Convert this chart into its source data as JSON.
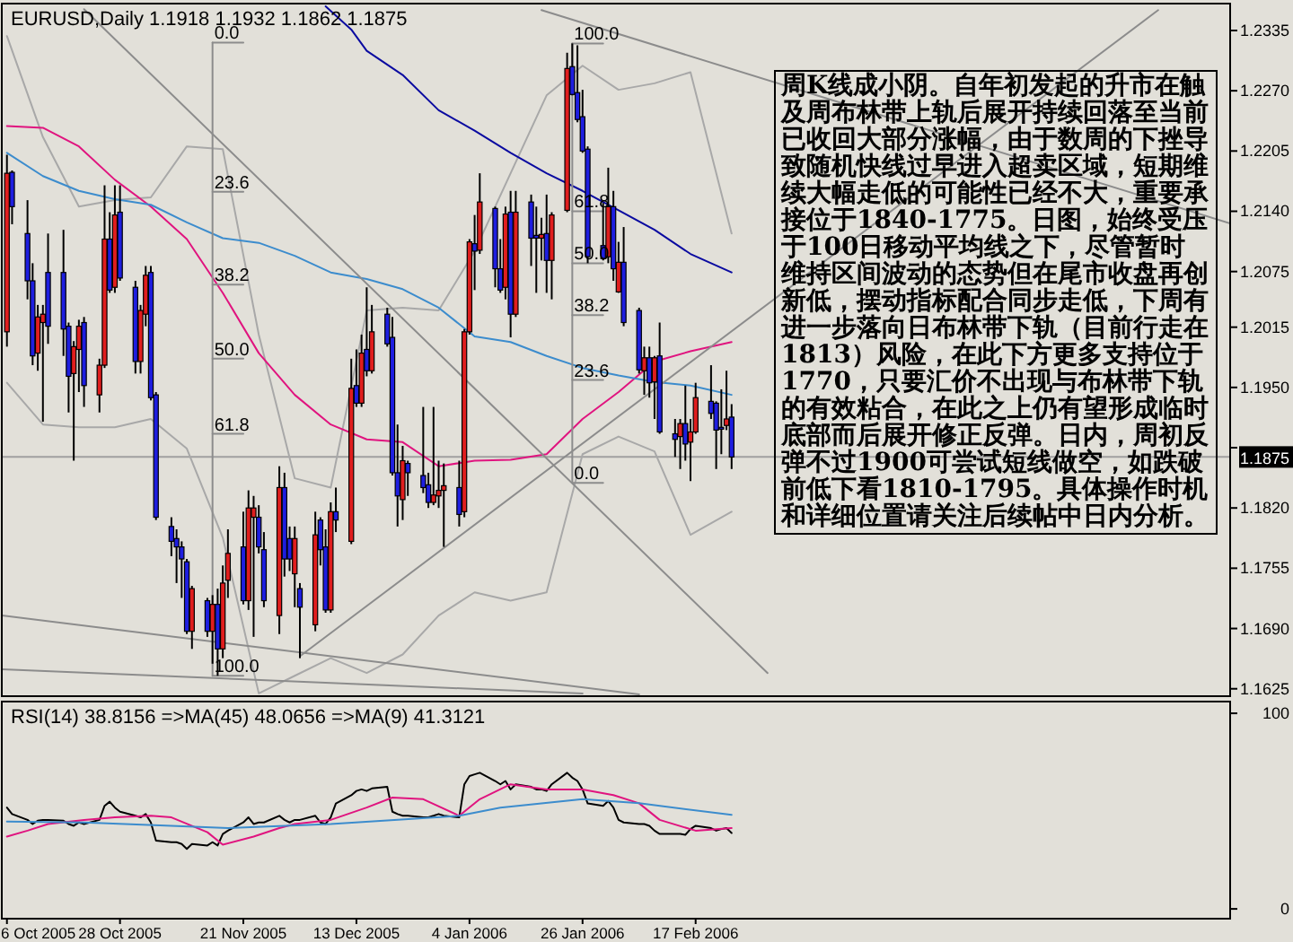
{
  "chart_data": [
    {
      "type": "candlestick",
      "title": "EURUSD,Daily 1.1918 1.1932 1.1862 1.1875",
      "x": [
        "2005-10-06",
        "2005-10-07",
        "2005-10-10",
        "2005-10-11",
        "2005-10-12",
        "2005-10-13",
        "2005-10-14",
        "2005-10-17",
        "2005-10-18",
        "2005-10-19",
        "2005-10-20",
        "2005-10-21",
        "2005-10-24",
        "2005-10-25",
        "2005-10-26",
        "2005-10-27",
        "2005-10-28",
        "2005-10-31",
        "2005-11-01",
        "2005-11-02",
        "2005-11-03",
        "2005-11-04",
        "2005-11-07",
        "2005-11-08",
        "2005-11-09",
        "2005-11-10",
        "2005-11-11",
        "2005-11-14",
        "2005-11-15",
        "2005-11-16",
        "2005-11-17",
        "2005-11-18",
        "2005-11-21",
        "2005-11-22",
        "2005-11-23",
        "2005-11-24",
        "2005-11-25",
        "2005-11-28",
        "2005-11-29",
        "2005-11-30",
        "2005-12-01",
        "2005-12-02",
        "2005-12-05",
        "2005-12-06",
        "2005-12-07",
        "2005-12-08",
        "2005-12-09",
        "2005-12-12",
        "2005-12-13",
        "2005-12-14",
        "2005-12-15",
        "2005-12-16",
        "2005-12-19",
        "2005-12-20",
        "2005-12-21",
        "2005-12-22",
        "2005-12-23",
        "2005-12-26",
        "2005-12-27",
        "2005-12-28",
        "2005-12-29",
        "2005-12-30",
        "2006-01-02",
        "2006-01-03",
        "2006-01-04",
        "2006-01-05",
        "2006-01-06",
        "2006-01-09",
        "2006-01-10",
        "2006-01-11",
        "2006-01-12",
        "2006-01-13",
        "2006-01-16",
        "2006-01-17",
        "2006-01-18",
        "2006-01-19",
        "2006-01-20",
        "2006-01-23",
        "2006-01-24",
        "2006-01-25",
        "2006-01-26",
        "2006-01-27",
        "2006-01-30",
        "2006-01-31",
        "2006-02-01",
        "2006-02-02",
        "2006-02-03",
        "2006-02-06",
        "2006-02-07",
        "2006-02-08",
        "2006-02-09",
        "2006-02-10",
        "2006-02-13",
        "2006-02-14",
        "2006-02-15",
        "2006-02-16",
        "2006-02-17",
        "2006-02-20",
        "2006-02-21",
        "2006-02-22",
        "2006-02-23",
        "2006-02-24"
      ],
      "ohlc": [
        [
          1.201,
          1.2201,
          1.1994,
          1.2181
        ],
        [
          1.2182,
          1.2184,
          1.2126,
          1.2145
        ],
        [
          1.2116,
          1.2152,
          1.2045,
          1.2065
        ],
        [
          1.2065,
          1.2084,
          1.1974,
          1.1984
        ],
        [
          1.1987,
          1.2039,
          1.1968,
          1.2026
        ],
        [
          1.202,
          1.2039,
          1.1913,
          1.2029
        ],
        [
          1.2074,
          1.2116,
          1.1997,
          1.2016
        ],
        [
          1.2074,
          1.212,
          1.1984,
          1.2013
        ],
        [
          1.2016,
          1.202,
          1.1923,
          1.1962
        ],
        [
          1.1965,
          1.2,
          1.1871,
          1.1994
        ],
        [
          1.1991,
          1.2023,
          1.1945,
          1.2016
        ],
        [
          1.202,
          1.2026,
          1.1929,
          1.1952
        ],
        [
          1.1942,
          1.1981,
          1.1923,
          1.1974
        ],
        [
          1.1974,
          1.2168,
          1.1971,
          1.211
        ],
        [
          1.211,
          1.2139,
          1.2052,
          1.2055
        ],
        [
          1.2058,
          1.2168,
          1.2052,
          1.2136
        ],
        [
          1.2139,
          1.2168,
          1.2065,
          1.2068
        ],
        [
          1.2058,
          1.2065,
          1.1965,
          1.1978
        ],
        [
          1.1978,
          1.2039,
          1.1965,
          1.2033
        ],
        [
          1.2029,
          1.2081,
          1.2016,
          1.2071
        ],
        [
          1.2074,
          1.2081,
          1.1936,
          1.1939
        ],
        [
          1.1942,
          1.1945,
          1.1807,
          1.181
        ],
        [
          1.18,
          1.181,
          1.1768,
          1.1784
        ],
        [
          1.1787,
          1.1797,
          1.1739,
          1.1778
        ],
        [
          1.1778,
          1.1784,
          1.1723,
          1.1765
        ],
        [
          1.1762,
          1.1765,
          1.1684,
          1.1687
        ],
        [
          1.1687,
          1.1736,
          1.1668,
          1.1733
        ],
        [
          1.172,
          1.1723,
          1.1681,
          1.1687
        ],
        [
          1.1687,
          1.1726,
          1.1652,
          1.1716
        ],
        [
          1.1716,
          1.1733,
          1.1639,
          1.1668
        ],
        [
          1.1668,
          1.1758,
          1.1658,
          1.1739
        ],
        [
          1.1742,
          1.1797,
          1.1723,
          1.1771
        ],
        [
          1.1778,
          1.1816,
          1.1716,
          1.172
        ],
        [
          1.172,
          1.1839,
          1.171,
          1.182
        ],
        [
          1.181,
          1.1833,
          1.1681,
          1.182
        ],
        [
          1.181,
          1.1823,
          1.1771,
          1.1778
        ],
        [
          1.1775,
          1.1794,
          1.1713,
          1.172
        ],
        [
          1.1704,
          1.1865,
          1.1684,
          1.1842
        ],
        [
          1.1842,
          1.1858,
          1.1746,
          1.1765
        ],
        [
          1.1787,
          1.18,
          1.1752,
          1.1765
        ],
        [
          1.1749,
          1.18,
          1.1713,
          1.1787
        ],
        [
          1.1733,
          1.1739,
          1.1658,
          1.1713
        ],
        [
          1.1694,
          1.1816,
          1.1687,
          1.1791
        ],
        [
          1.1807,
          1.181,
          1.1758,
          1.1775
        ],
        [
          1.1778,
          1.1797,
          1.1707,
          1.171
        ],
        [
          1.171,
          1.1826,
          1.1707,
          1.1816
        ],
        [
          1.1816,
          1.1842,
          1.1794,
          1.1807
        ],
        [
          1.1784,
          1.1981,
          1.1781,
          1.1949
        ],
        [
          1.1952,
          1.1991,
          1.1929,
          1.1933
        ],
        [
          1.1933,
          1.2007,
          1.1929,
          1.1987
        ],
        [
          1.1991,
          1.2058,
          1.1962,
          1.1968
        ],
        [
          1.1968,
          1.2039,
          1.1965,
          1.201
        ],
        [
          1.2029,
          1.2036,
          1.1994,
          1.1997
        ],
        [
          1.2004,
          1.2026,
          1.1855,
          1.1858
        ],
        [
          1.1858,
          1.191,
          1.18,
          1.1833
        ],
        [
          1.1829,
          1.1887,
          1.1807,
          1.1871
        ],
        [
          1.1868,
          1.1871,
          1.1833,
          1.1858
        ],
        [
          1.1855,
          1.1929,
          1.1836,
          1.1842
        ],
        [
          1.1845,
          1.1858,
          1.182,
          1.1826
        ],
        [
          1.1826,
          1.1929,
          1.1823,
          1.1834
        ],
        [
          1.1833,
          1.1871,
          1.182,
          1.1839
        ],
        [
          1.1839,
          1.1868,
          1.1778,
          1.1844
        ],
        [
          1.1842,
          1.1871,
          1.18,
          1.1813
        ],
        [
          1.1816,
          1.2013,
          1.181,
          1.201
        ],
        [
          1.201,
          1.211,
          1.2007,
          1.2107
        ],
        [
          1.2105,
          1.2136,
          1.2055,
          1.2097
        ],
        [
          1.2098,
          1.2181,
          1.2094,
          1.215
        ],
        [
          1.2143,
          1.2145,
          1.2058,
          1.2078
        ],
        [
          1.2078,
          1.211,
          1.2052,
          1.2055
        ],
        [
          1.2058,
          1.2145,
          1.2045,
          1.2137
        ],
        [
          1.2139,
          1.2162,
          1.2004,
          1.2029
        ],
        [
          1.2029,
          1.2162,
          1.2026,
          1.2139
        ],
        [
          1.215,
          1.2158,
          1.2081,
          1.2111
        ],
        [
          1.2114,
          1.2145,
          1.2052,
          1.2111
        ],
        [
          1.2111,
          1.2133,
          1.2087,
          1.2115
        ],
        [
          1.2116,
          1.2158,
          1.2052,
          1.2087
        ],
        [
          1.2087,
          1.2139,
          1.2045,
          1.2136
        ],
        [
          1.2141,
          1.2311,
          1.2139,
          1.2294
        ],
        [
          1.2296,
          1.2321,
          1.2265,
          1.2266
        ],
        [
          1.2268,
          1.2319,
          1.2236,
          1.2239
        ],
        [
          1.2242,
          1.2271,
          1.2203,
          1.2205
        ],
        [
          1.2207,
          1.221,
          1.2084,
          1.2091
        ],
        [
          1.2103,
          1.2149,
          1.2087,
          1.2089
        ],
        [
          1.2091,
          1.2187,
          1.2084,
          1.2145
        ],
        [
          1.2145,
          1.2162,
          1.2065,
          1.2078
        ],
        [
          1.2053,
          1.2107,
          1.2052,
          1.2085
        ],
        [
          1.2085,
          1.2123,
          1.2016,
          1.202
        ],
        [
          1.2033,
          1.2036,
          1.1965,
          1.1969
        ],
        [
          1.1968,
          1.1994,
          1.1942,
          1.1982
        ],
        [
          1.1982,
          1.1994,
          1.1939,
          1.1955
        ],
        [
          1.1956,
          1.1984,
          1.1916,
          1.1982
        ],
        [
          1.1984,
          1.202,
          1.19,
          1.1902
        ],
        [
          1.19,
          1.1916,
          1.1875,
          1.1894
        ],
        [
          1.1897,
          1.1916,
          1.1862,
          1.1911
        ],
        [
          1.1911,
          1.1952,
          1.1871,
          1.1889
        ],
        [
          1.1891,
          1.1916,
          1.1849,
          1.1902
        ],
        [
          1.1902,
          1.1955,
          1.19,
          1.1939
        ],
        [
          1.1935,
          1.1974,
          1.1916,
          1.1922
        ],
        [
          1.1933,
          1.1935,
          1.1862,
          1.1904
        ],
        [
          1.1907,
          1.1948,
          1.1878,
          1.1905
        ],
        [
          1.1909,
          1.1968,
          1.1904,
          1.1916
        ],
        [
          1.1918,
          1.1932,
          1.1862,
          1.1875
        ]
      ],
      "colors": [
        "#e01e1e",
        "#1e1ee0",
        "#1e1ee0",
        "#1e1ee0",
        "#e01e1e",
        "#e01e1e",
        "#1e1ee0",
        "#1e1ee0",
        "#1e1ee0",
        "#e01e1e",
        "#e01e1e",
        "#1e1ee0",
        "#e01e1e",
        "#e01e1e",
        "#1e1ee0",
        "#e01e1e",
        "#1e1ee0",
        "#1e1ee0",
        "#e01e1e",
        "#e01e1e",
        "#1e1ee0",
        "#1e1ee0",
        "#1e1ee0",
        "#1e1ee0",
        "#1e1ee0",
        "#1e1ee0",
        "#e01e1e",
        "#1e1ee0",
        "#e01e1e",
        "#1e1ee0",
        "#e01e1e",
        "#e01e1e",
        "#1e1ee0",
        "#e01e1e",
        "#e01e1e",
        "#1e1ee0",
        "#1e1ee0",
        "#e01e1e",
        "#1e1ee0",
        "#1e1ee0",
        "#e01e1e",
        "#1e1ee0",
        "#e01e1e",
        "#1e1ee0",
        "#1e1ee0",
        "#e01e1e",
        "#1e1ee0",
        "#e01e1e",
        "#1e1ee0",
        "#e01e1e",
        "#1e1ee0",
        "#e01e1e",
        "#1e1ee0",
        "#1e1ee0",
        "#1e1ee0",
        "#e01e1e",
        "#1e1ee0",
        "#1e1ee0",
        "#1e1ee0",
        "#e01e1e",
        "#e01e1e",
        "#e01e1e",
        "#1e1ee0",
        "#e01e1e",
        "#e01e1e",
        "#1e1ee0",
        "#e01e1e",
        "#1e1ee0",
        "#1e1ee0",
        "#e01e1e",
        "#1e1ee0",
        "#e01e1e",
        "#1e1ee0",
        "#1e1ee0",
        "#e01e1e",
        "#1e1ee0",
        "#e01e1e",
        "#e01e1e",
        "#1e1ee0",
        "#1e1ee0",
        "#1e1ee0",
        "#1e1ee0",
        "#1e1ee0",
        "#e01e1e",
        "#1e1ee0",
        "#e01e1e",
        "#1e1ee0",
        "#1e1ee0",
        "#e01e1e",
        "#1e1ee0",
        "#e01e1e",
        "#1e1ee0",
        "#1e1ee0",
        "#e01e1e",
        "#1e1ee0",
        "#e01e1e",
        "#e01e1e",
        "#1e1ee0",
        "#1e1ee0",
        "#1e1ee0",
        "#e01e1e",
        "#1e1ee0"
      ],
      "series": [
        {
          "type": "line",
          "color": "#a8a8a8",
          "x": [
            "2005-10-06",
            "2005-10-13",
            "2005-10-20",
            "2005-10-27",
            "2005-11-03",
            "2005-11-10",
            "2005-11-17",
            "2005-11-24",
            "2005-12-01",
            "2005-12-08",
            "2005-12-15",
            "2005-12-22",
            "2005-12-29",
            "2006-01-05",
            "2006-01-12",
            "2006-01-19",
            "2006-01-26",
            "2006-02-02",
            "2006-02-09",
            "2006-02-16",
            "2006-02-24"
          ],
          "values": [
            1.2329,
            1.222,
            1.2145,
            1.2152,
            1.2155,
            1.221,
            1.2207,
            1.2007,
            1.1852,
            1.1842,
            1.2033,
            1.2036,
            1.2033,
            1.2097,
            1.2181,
            1.2265,
            1.2297,
            1.2271,
            1.2278,
            1.229,
            1.2116
          ]
        },
        {
          "type": "line",
          "color": "#a8a8a8",
          "x": [
            "2005-10-06",
            "2005-10-13",
            "2005-10-20",
            "2005-10-27",
            "2005-11-03",
            "2005-11-10",
            "2005-11-17",
            "2005-11-24",
            "2005-12-01",
            "2005-12-08",
            "2005-12-15",
            "2005-12-22",
            "2005-12-29",
            "2006-01-05",
            "2006-01-12",
            "2006-01-19",
            "2006-01-26",
            "2006-02-02",
            "2006-02-09",
            "2006-02-16",
            "2006-02-24"
          ],
          "values": [
            1.1955,
            1.191,
            1.1907,
            1.1907,
            1.1916,
            1.1884,
            1.1788,
            1.162,
            1.1639,
            1.1658,
            1.1642,
            1.1662,
            1.1704,
            1.1729,
            1.172,
            1.1729,
            1.1878,
            1.1897,
            1.1881,
            1.1791,
            1.1816
          ]
        },
        {
          "type": "line",
          "color": "#e0147f",
          "x": [
            "2005-10-06",
            "2005-10-13",
            "2005-10-20",
            "2005-10-27",
            "2005-11-03",
            "2005-11-10",
            "2005-11-17",
            "2005-11-24",
            "2005-12-01",
            "2005-12-08",
            "2005-12-15",
            "2005-12-22",
            "2005-12-29",
            "2006-01-05",
            "2006-01-12",
            "2006-01-19",
            "2006-01-26",
            "2006-02-02",
            "2006-02-09",
            "2006-02-16",
            "2006-02-24"
          ],
          "values": [
            1.2232,
            1.223,
            1.221,
            1.2174,
            1.2145,
            1.211,
            1.2052,
            1.1987,
            1.1942,
            1.191,
            1.1894,
            1.1891,
            1.1865,
            1.1871,
            1.1872,
            1.1878,
            1.1916,
            1.1945,
            1.1978,
            1.1989,
            1.1999
          ]
        },
        {
          "type": "line",
          "color": "#3c8ccd",
          "x": [
            "2005-10-06",
            "2005-10-13",
            "2005-10-20",
            "2005-10-27",
            "2005-11-03",
            "2005-11-10",
            "2005-11-17",
            "2005-11-24",
            "2005-12-01",
            "2005-12-08",
            "2005-12-15",
            "2005-12-22",
            "2005-12-29",
            "2006-01-05",
            "2006-01-12",
            "2006-01-19",
            "2006-01-26",
            "2006-02-02",
            "2006-02-09",
            "2006-02-16",
            "2006-02-24"
          ],
          "values": [
            1.2203,
            1.2178,
            1.2162,
            1.2153,
            1.2147,
            1.2128,
            1.2111,
            1.2106,
            1.2092,
            1.2074,
            1.2067,
            1.2056,
            1.2036,
            1.2005,
            1.1999,
            1.1984,
            1.1971,
            1.1963,
            1.1956,
            1.1952,
            1.1942
          ]
        },
        {
          "type": "line",
          "color": "#0a0aa0",
          "x": [
            "2005-12-07",
            "2005-12-12",
            "2005-12-15",
            "2005-12-22",
            "2005-12-29",
            "2006-01-05",
            "2006-01-12",
            "2006-01-19",
            "2006-01-26",
            "2006-02-02",
            "2006-02-09",
            "2006-02-16",
            "2006-02-24"
          ],
          "values": [
            1.2361,
            1.2336,
            1.2313,
            1.2287,
            1.2249,
            1.2227,
            1.2203,
            1.2181,
            1.2162,
            1.2141,
            1.212,
            1.2094,
            1.2074
          ]
        },
        {
          "type": "line",
          "color": "#8c8c8c",
          "x": [
            "2005-10-21",
            "2006-03-03"
          ],
          "values": [
            1.2358,
            1.1642
          ]
        },
        {
          "type": "line",
          "color": "#8c8c8c",
          "x": [
            "2006-01-18",
            "2006-06-01"
          ],
          "values": [
            1.2357,
            1.2127
          ]
        },
        {
          "type": "line",
          "color": "#8c8c8c",
          "x": [
            "2005-12-02",
            "2006-05-18"
          ],
          "values": [
            1.166,
            1.2357
          ]
        },
        {
          "type": "line",
          "color": "#8c8c8c",
          "x": [
            "2005-10-05",
            "2006-02-06"
          ],
          "values": [
            1.1704,
            1.1619
          ]
        },
        {
          "type": "line",
          "color": "#8c8c8c",
          "x": [
            "2005-10-05",
            "2006-01-26"
          ],
          "values": [
            1.1646,
            1.162
          ]
        },
        {
          "type": "line",
          "color": "#8c8c8c",
          "x": [
            "2005-11-15",
            "2005-11-15"
          ],
          "values": [
            1.2322,
            1.1639
          ]
        },
        {
          "type": "line",
          "color": "#8c8c8c",
          "x": [
            "2006-01-24",
            "2006-01-24"
          ],
          "values": [
            1.2321,
            1.1847
          ]
        },
        {
          "type": "line",
          "color": "#8c8c8c",
          "x": [
            "2005-11-15",
            "2005-11-21"
          ],
          "values": [
            1.2322,
            1.2322
          ]
        },
        {
          "type": "line",
          "color": "#8c8c8c",
          "x": [
            "2005-11-15",
            "2005-11-21"
          ],
          "values": [
            1.2161,
            1.2161
          ]
        },
        {
          "type": "line",
          "color": "#8c8c8c",
          "x": [
            "2005-11-15",
            "2005-11-21"
          ],
          "values": [
            1.2061,
            1.2061
          ]
        },
        {
          "type": "line",
          "color": "#8c8c8c",
          "x": [
            "2005-11-15",
            "2005-11-21"
          ],
          "values": [
            1.1981,
            1.1981
          ]
        },
        {
          "type": "line",
          "color": "#8c8c8c",
          "x": [
            "2005-11-15",
            "2005-11-21"
          ],
          "values": [
            1.19,
            1.19
          ]
        },
        {
          "type": "line",
          "color": "#8c8c8c",
          "x": [
            "2005-11-15",
            "2005-11-21"
          ],
          "values": [
            1.1639,
            1.1639
          ]
        },
        {
          "type": "line",
          "color": "#8c8c8c",
          "x": [
            "2006-01-24",
            "2006-01-30"
          ],
          "values": [
            1.2321,
            1.2321
          ]
        },
        {
          "type": "line",
          "color": "#8c8c8c",
          "x": [
            "2006-01-24",
            "2006-01-30"
          ],
          "values": [
            1.214,
            1.214
          ]
        },
        {
          "type": "line",
          "color": "#8c8c8c",
          "x": [
            "2006-01-24",
            "2006-01-30"
          ],
          "values": [
            1.2084,
            1.2084
          ]
        },
        {
          "type": "line",
          "color": "#8c8c8c",
          "x": [
            "2006-01-24",
            "2006-01-30"
          ],
          "values": [
            1.2028,
            1.2028
          ]
        },
        {
          "type": "line",
          "color": "#8c8c8c",
          "x": [
            "2006-01-24",
            "2006-01-30"
          ],
          "values": [
            1.1958,
            1.1958
          ]
        },
        {
          "type": "line",
          "color": "#8c8c8c",
          "x": [
            "2006-01-24",
            "2006-01-30"
          ],
          "values": [
            1.1847,
            1.1847
          ]
        }
      ],
      "xlim": [
        "2005-10-05",
        "2006-06-01"
      ],
      "ylim": [
        1.1617,
        1.2364
      ],
      "yticks": [
        1.1625,
        {
          "value": 1.169,
          "label": "1.1690"
        },
        1.1755,
        {
          "value": 1.182,
          "label": "1.1820"
        },
        {
          "value": 1.1885,
          "label": null
        },
        {
          "value": 1.195,
          "label": "1.1950"
        },
        1.2015,
        1.2075,
        {
          "value": 1.214,
          "label": "1.2140"
        },
        1.2205,
        {
          "value": 1.227,
          "label": "1.2270"
        },
        1.2335
      ],
      "tick_labels": "y",
      "ref_lines": [
        {
          "axis": "y",
          "value": 1.1875,
          "label": "1.1875",
          "color": "#a0a0a0"
        }
      ],
      "annotations": [
        {
          "text": "0.0",
          "x": "2005-11-15",
          "y": 1.2322
        },
        {
          "text": "23.6",
          "x": "2005-11-15",
          "y": 1.2161
        },
        {
          "text": "38.2",
          "x": "2005-11-15",
          "y": 1.2061
        },
        {
          "text": "50.0",
          "x": "2005-11-15",
          "y": 1.1981
        },
        {
          "text": "61.8",
          "x": "2005-11-15",
          "y": 1.19
        },
        {
          "text": "100.0",
          "x": "2005-11-15",
          "y": 1.1639
        },
        {
          "text": "100.0",
          "x": "2006-01-24",
          "y": 1.2321
        },
        {
          "text": "61.8",
          "x": "2006-01-24",
          "y": 1.214
        },
        {
          "text": "50.0",
          "x": "2006-01-24",
          "y": 1.2084
        },
        {
          "text": "38.2",
          "x": "2006-01-24",
          "y": 1.2028
        },
        {
          "text": "23.6",
          "x": "2006-01-24",
          "y": 1.1958
        },
        {
          "text": "0.0",
          "x": "2006-01-24",
          "y": 1.1847
        },
        "周K线成小阴。自年初发起的升市在触及周布林带上轨后展开持续回落至当前已收回大部分涨幅，由于数周的下挫导致随机快线过早进入超卖区域，短期维续大幅走低的可能性已经不大，重要承接位于1840-1775。日图，始终受压于100日移动平均线之下，尽管暂时维持区间波动的态势但在尾市收盘再创新低，摆动指标配合同步走低，下周有进一步落向日布林带下轨（目前行走在1813）风险，在此下方更多支持位于1770，只要汇价不出现与布林带下轨的有效粘合，在此之上仍有望形成临时底部而后展开修正反弹。日内，周初反弹不过1900可尝试短线做空，如跌破前低下看1810-1795。具体操作时机和详细位置请关注后续帖中日内分析。"
      ]
    },
    {
      "type": "line",
      "title": "RSI(14) 38.8156 =>MA(45) 48.0656 =>MA(9) 41.3121",
      "x": [
        "2005-10-06",
        "2005-10-07",
        "2005-10-10",
        "2005-10-11",
        "2005-10-12",
        "2005-10-13",
        "2005-10-14",
        "2005-10-17",
        "2005-10-18",
        "2005-10-19",
        "2005-10-20",
        "2005-10-21",
        "2005-10-24",
        "2005-10-25",
        "2005-10-26",
        "2005-10-27",
        "2005-10-28",
        "2005-10-31",
        "2005-11-01",
        "2005-11-02",
        "2005-11-03",
        "2005-11-04",
        "2005-11-07",
        "2005-11-08",
        "2005-11-09",
        "2005-11-10",
        "2005-11-11",
        "2005-11-14",
        "2005-11-15",
        "2005-11-16",
        "2005-11-17",
        "2005-11-18",
        "2005-11-21",
        "2005-11-22",
        "2005-11-23",
        "2005-11-24",
        "2005-11-25",
        "2005-11-28",
        "2005-11-29",
        "2005-11-30",
        "2005-12-01",
        "2005-12-02",
        "2005-12-05",
        "2005-12-06",
        "2005-12-07",
        "2005-12-08",
        "2005-12-09",
        "2005-12-12",
        "2005-12-13",
        "2005-12-14",
        "2005-12-15",
        "2005-12-16",
        "2005-12-19",
        "2005-12-20",
        "2005-12-21",
        "2005-12-22",
        "2005-12-23",
        "2005-12-26",
        "2005-12-27",
        "2005-12-28",
        "2005-12-29",
        "2005-12-30",
        "2006-01-02",
        "2006-01-03",
        "2006-01-04",
        "2006-01-05",
        "2006-01-06",
        "2006-01-09",
        "2006-01-10",
        "2006-01-11",
        "2006-01-12",
        "2006-01-13",
        "2006-01-16",
        "2006-01-17",
        "2006-01-18",
        "2006-01-19",
        "2006-01-20",
        "2006-01-23",
        "2006-01-24",
        "2006-01-25",
        "2006-01-26",
        "2006-01-27",
        "2006-01-30",
        "2006-01-31",
        "2006-02-01",
        "2006-02-02",
        "2006-02-03",
        "2006-02-06",
        "2006-02-07",
        "2006-02-08",
        "2006-02-09",
        "2006-02-10",
        "2006-02-13",
        "2006-02-14",
        "2006-02-15",
        "2006-02-16",
        "2006-02-17",
        "2006-02-20",
        "2006-02-21",
        "2006-02-22",
        "2006-02-23",
        "2006-02-24"
      ],
      "series": [
        {
          "color": "#000000",
          "values": [
            51.8,
            48.5,
            45.5,
            43.4,
            45.1,
            45.5,
            45.5,
            45.1,
            43.4,
            42.5,
            44.2,
            43.4,
            45.5,
            52.7,
            54.8,
            51.8,
            49.7,
            47.6,
            46.8,
            48.5,
            44.2,
            34.9,
            34.1,
            34.1,
            33.2,
            30.7,
            33.2,
            32.4,
            34.1,
            32.4,
            38.3,
            40.0,
            44.2,
            46.8,
            43.4,
            44.2,
            44.2,
            47.6,
            45.5,
            44.2,
            45.5,
            45.5,
            47.6,
            44.2,
            43.4,
            46.8,
            53.9,
            58.1,
            60.3,
            61.1,
            60.3,
            61.6,
            62.4,
            49.7,
            48.5,
            47.6,
            47.6,
            46.8,
            46.8,
            47.6,
            48.5,
            47.6,
            46.8,
            63.7,
            67.9,
            68.8,
            69.6,
            65.4,
            63.7,
            65.4,
            61.1,
            63.7,
            62.4,
            61.1,
            61.1,
            60.3,
            63.7,
            69.6,
            67.1,
            65.4,
            61.1,
            53.9,
            52.7,
            55.2,
            51.8,
            45.5,
            44.2,
            43.4,
            43.4,
            42.5,
            40.0,
            38.3,
            38.3,
            38.3,
            37.9,
            40.8,
            42.5,
            41.3,
            40.0,
            40.8,
            41.3,
            38.8
          ]
        },
        {
          "color": "#e0147f",
          "x": [
            "2005-10-06",
            "2005-10-10",
            "2005-10-14",
            "2005-10-21",
            "2005-10-27",
            "2005-11-03",
            "2005-11-07",
            "2005-11-14",
            "2005-11-17",
            "2005-11-23",
            "2005-11-28",
            "2005-12-01",
            "2005-12-08",
            "2005-12-15",
            "2005-12-20",
            "2005-12-26",
            "2006-01-02",
            "2006-01-06",
            "2006-01-12",
            "2006-01-19",
            "2006-01-26",
            "2006-02-01",
            "2006-02-06",
            "2006-02-10",
            "2006-02-17",
            "2006-02-24"
          ],
          "values": [
            37.0,
            40.0,
            43.4,
            45.5,
            46.8,
            47.6,
            46.8,
            39.2,
            32.8,
            37.0,
            41.3,
            43.4,
            45.5,
            51.8,
            56.9,
            56.1,
            47.6,
            56.1,
            63.7,
            61.1,
            61.1,
            58.2,
            54.0,
            45.5,
            40.0,
            41.3
          ]
        },
        {
          "color": "#3c8ccd",
          "x": [
            "2005-10-06",
            "2005-10-21",
            "2005-11-07",
            "2005-11-18",
            "2005-12-08",
            "2006-01-02",
            "2006-01-10",
            "2006-01-26",
            "2006-02-06",
            "2006-02-24"
          ],
          "values": [
            44.6,
            44.2,
            42.5,
            41.3,
            43.4,
            47.6,
            51.8,
            56.1,
            54.0,
            48.1
          ]
        }
      ],
      "xlim": [
        "2005-10-05",
        "2006-06-01"
      ],
      "ylim": [
        -5,
        106
      ],
      "yticks": [
        0,
        100
      ],
      "xticks": [
        {
          "value": "2005-10-06",
          "label": "6 Oct 2005"
        },
        {
          "value": "2005-10-28",
          "label": "28 Oct 2005"
        },
        {
          "value": "2005-11-21",
          "label": "21 Nov 2005"
        },
        {
          "value": "2005-12-13",
          "label": "13 Dec 2005"
        },
        {
          "value": "2006-01-04",
          "label": "4 Jan 2006"
        },
        {
          "value": "2006-01-26",
          "label": "26 Jan 2006"
        },
        {
          "value": "2006-02-17",
          "label": "17 Feb 2006"
        }
      ]
    }
  ]
}
